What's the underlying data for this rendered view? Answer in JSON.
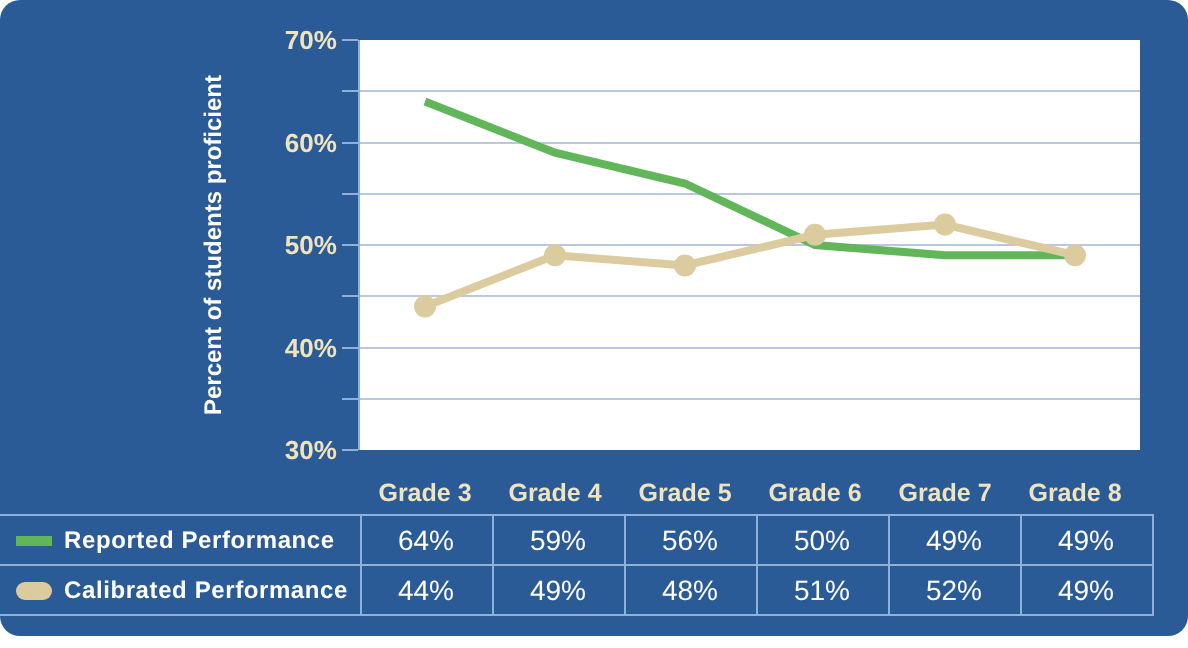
{
  "chart_data": {
    "type": "line",
    "ylabel": "Percent of students proficient",
    "categories": [
      "Grade 3",
      "Grade 4",
      "Grade 5",
      "Grade 6",
      "Grade 7",
      "Grade 8"
    ],
    "series": [
      {
        "name": "Reported Performance",
        "color": "#62b65a",
        "marker": "none",
        "values": [
          64,
          59,
          56,
          50,
          49,
          49
        ],
        "value_labels": [
          "64%",
          "59%",
          "56%",
          "50%",
          "49%",
          "49%"
        ]
      },
      {
        "name": "Calibrated Performance",
        "color": "#dccb9f",
        "marker": "circle",
        "values": [
          44,
          49,
          48,
          51,
          52,
          49
        ],
        "value_labels": [
          "44%",
          "49%",
          "48%",
          "51%",
          "52%",
          "49%"
        ]
      }
    ],
    "ylim": [
      30,
      70
    ],
    "yticks": [
      {
        "value": 30,
        "label": "30%"
      },
      {
        "value": 35,
        "label": null
      },
      {
        "value": 40,
        "label": "40%"
      },
      {
        "value": 45,
        "label": null
      },
      {
        "value": 50,
        "label": "50%"
      },
      {
        "value": 55,
        "label": null
      },
      {
        "value": 60,
        "label": "60%"
      },
      {
        "value": 65,
        "label": null
      },
      {
        "value": 70,
        "label": "70%"
      }
    ],
    "grid": "y",
    "legend": "bottom left"
  }
}
